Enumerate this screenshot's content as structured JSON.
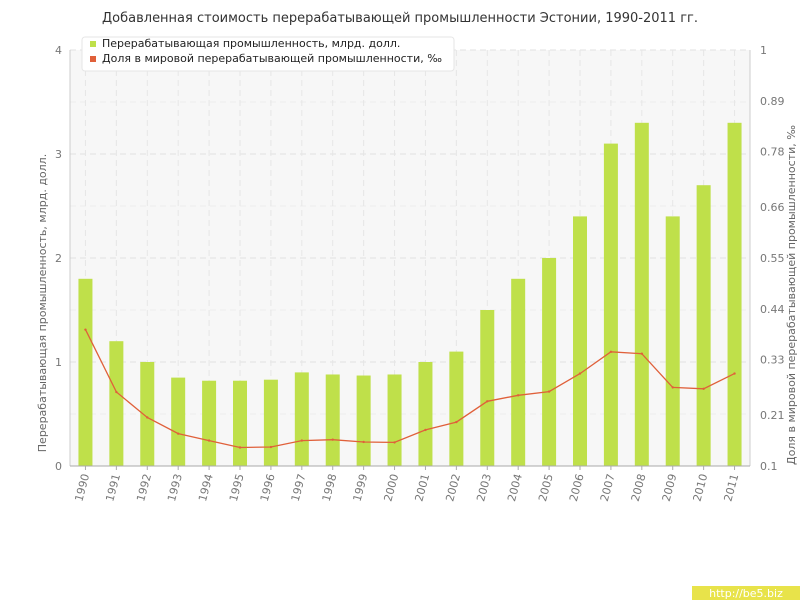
{
  "chart_data": {
    "type": "bar",
    "title": "Добавленная стоимость перерабатывающей промышленности Эстонии, 1990-2011 гг.",
    "categories": [
      "1990",
      "1991",
      "1992",
      "1993",
      "1994",
      "1995",
      "1996",
      "1997",
      "1998",
      "1999",
      "2000",
      "2001",
      "2002",
      "2003",
      "2004",
      "2005",
      "2006",
      "2007",
      "2008",
      "2009",
      "2010",
      "2011"
    ],
    "series": [
      {
        "name": "Перерабатывающая промышленность, млрд. долл.",
        "type": "bar",
        "axis": "left",
        "color": "#bfe04a",
        "values": [
          1.8,
          1.2,
          1.0,
          0.85,
          0.82,
          0.82,
          0.83,
          0.9,
          0.88,
          0.87,
          0.88,
          1.0,
          1.1,
          1.5,
          1.8,
          2.0,
          2.4,
          3.1,
          3.3,
          2.4,
          2.7,
          3.3
        ]
      },
      {
        "name": "Доля в мировой перерабатывающей промышленности, ‰",
        "type": "line",
        "axis": "right",
        "color": "#e0603a",
        "values": [
          0.395,
          0.26,
          0.205,
          0.17,
          0.155,
          0.14,
          0.141,
          0.155,
          0.157,
          0.152,
          0.151,
          0.178,
          0.195,
          0.24,
          0.253,
          0.261,
          0.3,
          0.347,
          0.343,
          0.27,
          0.267,
          0.3
        ]
      }
    ],
    "ylabel": "Перерабатывающая промышленность, млрд. долл.",
    "y2label": "Доля в мировой перерабатывающей промышленности, ‰",
    "ylim": [
      0,
      4
    ],
    "y2lim": [
      0.1,
      1
    ],
    "yticks": [
      "0",
      "1",
      "2",
      "3",
      "4"
    ],
    "y2ticks": [
      "0.1",
      "0.21",
      "0.33",
      "0.44",
      "0.55",
      "0.66",
      "0.78",
      "0.89",
      "1"
    ],
    "grid": true,
    "legend_position": "top-left"
  },
  "watermark": "http://be5.biz"
}
